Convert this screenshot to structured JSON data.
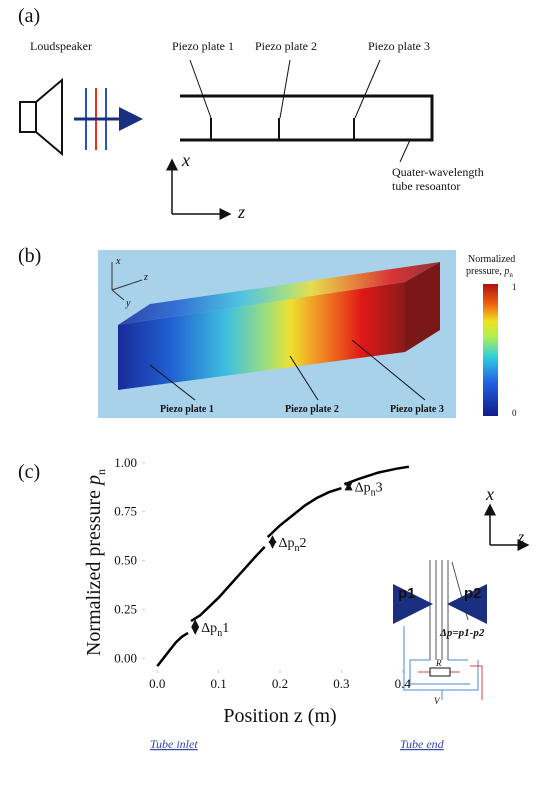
{
  "panel_a": {
    "label": "(a)",
    "loudspeaker": "Loudspeaker",
    "plates": [
      "Piezo plate 1",
      "Piezo plate 2",
      "Piezo plate 3"
    ],
    "tube_line1": "Quater-wavelength",
    "tube_line2": "tube resoantor",
    "axis_x": "x",
    "axis_z": "z"
  },
  "panel_b": {
    "label": "(b)",
    "plates": [
      "Piezo plate 1",
      "Piezo plate 2",
      "Piezo plate 3"
    ],
    "colorbar_title": "Normalized",
    "colorbar_sub_title": "pressure, ",
    "colorbar_symbol": "p",
    "colorbar_symbol_sub": "n",
    "colorbar_max": "1",
    "colorbar_min": "0",
    "axes": [
      "x",
      "z",
      "y"
    ]
  },
  "panel_c": {
    "label": "(c)",
    "inlet": "Tube inlet",
    "end": "Tube end",
    "inset": {
      "axis_x": "x",
      "axis_z": "z",
      "p1": "p1",
      "p2": "p2",
      "delta": "Δp=p1-p2",
      "resistor": "R",
      "voltage": "V"
    }
  },
  "chart_data": {
    "type": "line",
    "xlabel": "Position z (m)",
    "ylabel": "Normalized pressure ",
    "ylabel_symbol": "p",
    "ylabel_sub": "n",
    "color": "#000000",
    "x": [
      0,
      0.01,
      0.02,
      0.03,
      0.04,
      0.05,
      0.052,
      0.055,
      0.07,
      0.1,
      0.12,
      0.14,
      0.16,
      0.175,
      0.178,
      0.18,
      0.2,
      0.22,
      0.24,
      0.26,
      0.28,
      0.3,
      0.302,
      0.305,
      0.33,
      0.36,
      0.39,
      0.41
    ],
    "values": [
      -0.04,
      0.0,
      0.04,
      0.08,
      0.11,
      0.13,
      null,
      0.19,
      0.22,
      0.31,
      0.38,
      0.45,
      0.52,
      0.57,
      null,
      0.62,
      0.68,
      0.73,
      0.78,
      0.82,
      0.85,
      0.87,
      null,
      0.89,
      0.92,
      0.95,
      0.97,
      0.98
    ],
    "annotations": [
      {
        "text": "Δp",
        "sub": "n",
        "suffix": "1"
      },
      {
        "text": "Δp",
        "sub": "n",
        "suffix": "2"
      },
      {
        "text": "Δp",
        "sub": "n",
        "suffix": "3"
      }
    ],
    "xlim": [
      -0.02,
      0.42
    ],
    "ylim": [
      -0.06,
      1.04
    ],
    "xticks": [
      {
        "value": 0,
        "label": "0.0"
      },
      0.1,
      0.2,
      0.3,
      0.4
    ],
    "yticks": [
      {
        "value": 0,
        "label": "0.00"
      },
      0.25,
      {
        "value": 0.5,
        "label": "0.50"
      },
      0.75,
      {
        "value": 1,
        "label": "1.00"
      }
    ]
  }
}
